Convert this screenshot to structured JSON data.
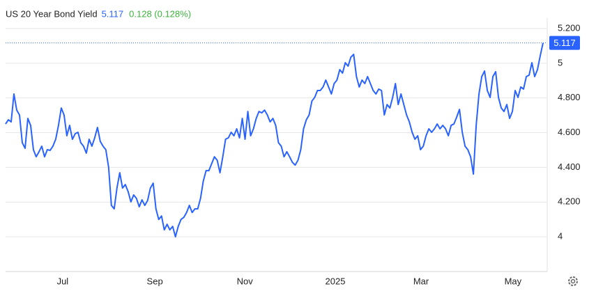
{
  "chart_data": {
    "type": "line",
    "title": "US 20 Year Bond Yield",
    "change": "0.128 (0.128%)",
    "color": "#2962ff",
    "grid": true,
    "values": [
      4.65,
      4.674,
      4.662,
      4.823,
      4.73,
      4.702,
      4.542,
      4.51,
      4.682,
      4.642,
      4.502,
      4.461,
      4.49,
      4.522,
      4.461,
      4.502,
      4.498,
      4.522,
      4.562,
      4.642,
      4.742,
      4.702,
      4.582,
      4.642,
      4.562,
      4.594,
      4.602,
      4.542,
      4.522,
      4.482,
      4.562,
      4.522,
      4.57,
      4.63,
      4.55,
      4.522,
      4.502,
      4.401,
      4.181,
      4.161,
      4.281,
      4.369,
      4.281,
      4.301,
      4.261,
      4.201,
      4.241,
      4.221,
      4.173,
      4.213,
      4.181,
      4.209,
      4.281,
      4.309,
      4.161,
      4.1,
      4.12,
      4.04,
      4.072,
      4.04,
      4.06,
      4.0,
      4.06,
      4.1,
      4.112,
      4.14,
      4.181,
      4.14,
      4.161,
      4.161,
      4.221,
      4.321,
      4.381,
      4.381,
      4.421,
      4.461,
      4.441,
      4.369,
      4.461,
      4.562,
      4.57,
      4.602,
      4.582,
      4.622,
      4.57,
      4.682,
      4.562,
      4.722,
      4.582,
      4.622,
      4.682,
      4.722,
      4.714,
      4.73,
      4.702,
      4.662,
      4.682,
      4.642,
      4.542,
      4.522,
      4.461,
      4.49,
      4.461,
      4.429,
      4.413,
      4.441,
      4.502,
      4.622,
      4.674,
      4.702,
      4.782,
      4.803,
      4.843,
      4.843,
      4.863,
      4.903,
      4.863,
      4.823,
      4.883,
      4.903,
      4.963,
      4.943,
      5.003,
      4.983,
      5.035,
      5.051,
      4.923,
      4.863,
      4.903,
      4.883,
      4.923,
      4.883,
      4.843,
      4.823,
      4.851,
      4.843,
      4.702,
      4.762,
      4.742,
      4.803,
      4.883,
      4.762,
      4.823,
      4.762,
      4.702,
      4.662,
      4.602,
      4.562,
      4.582,
      4.502,
      4.522,
      4.582,
      4.622,
      4.602,
      4.622,
      4.65,
      4.622,
      4.642,
      4.622,
      4.582,
      4.642,
      4.65,
      4.69,
      4.734,
      4.602,
      4.522,
      4.502,
      4.461,
      4.361,
      4.642,
      4.823,
      4.923,
      4.955,
      4.843,
      4.803,
      4.923,
      4.951,
      4.803,
      4.742,
      4.722,
      4.762,
      4.682,
      4.722,
      4.843,
      4.803,
      4.863,
      4.851,
      4.923,
      4.931,
      5.003,
      4.923,
      4.963,
      5.043,
      5.117
    ],
    "xlim": [
      0,
      193
    ],
    "xticks": [
      {
        "value": 20.5,
        "label": "Jul"
      },
      {
        "value": 53.6,
        "label": "Sep"
      },
      {
        "value": 85.9,
        "label": "Nov"
      },
      {
        "value": 118.4,
        "label": "2025"
      },
      {
        "value": 149.2,
        "label": "Mar"
      },
      {
        "value": 182.2,
        "label": "May"
      }
    ],
    "ylim": [
      3.8,
      5.26
    ],
    "yticks": [
      {
        "value": 5.2,
        "label": "5.200"
      },
      5,
      {
        "value": 4.8,
        "label": "4.800"
      },
      {
        "value": 4.6,
        "label": "4.600"
      },
      {
        "value": 4.4,
        "label": "4.400"
      },
      {
        "value": 4.2,
        "label": "4.200"
      },
      4
    ]
  }
}
